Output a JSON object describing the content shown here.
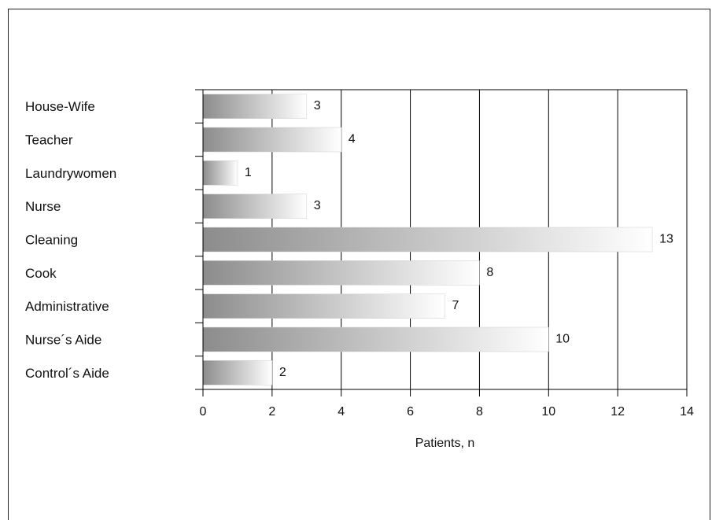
{
  "chart_data": {
    "type": "bar",
    "orientation": "horizontal",
    "categories": [
      "House-Wife",
      "Teacher",
      "Laundrywomen",
      "Nurse",
      "Cleaning",
      "Cook",
      "Administrative",
      "Nurse´s Aide",
      "Control´s Aide"
    ],
    "values": [
      3,
      4,
      1,
      3,
      13,
      8,
      7,
      10,
      2
    ],
    "xlabel": "Patients, n",
    "ylabel": "",
    "xlim": [
      0,
      14
    ],
    "xticks": [
      0,
      2,
      4,
      6,
      8,
      10,
      12,
      14
    ],
    "grid": "vertical",
    "bar_fill": "gradient dark gray to white",
    "colors": {
      "bar_start": "#8c8c8c",
      "bar_end": "#ffffff",
      "axis": "#000000"
    }
  }
}
